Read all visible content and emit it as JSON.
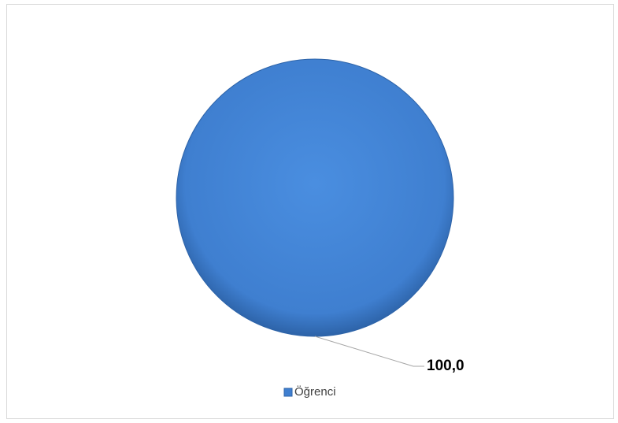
{
  "chart_data": {
    "type": "pie",
    "categories": [
      "Öğrenci"
    ],
    "values": [
      100
    ],
    "value_labels": [
      "100,0"
    ],
    "colors": [
      "#3f7fd0"
    ],
    "legend": "bottom"
  }
}
